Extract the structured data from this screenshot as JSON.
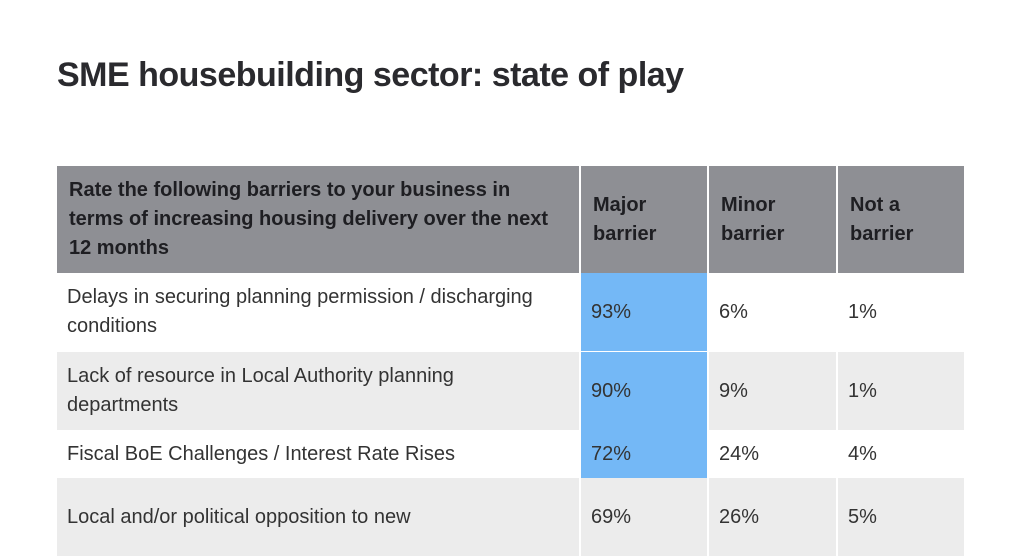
{
  "header": {
    "title": "SME housebuilding sector: state of play"
  },
  "table": {
    "columns": [
      "Rate the following barriers to your business in terms of increasing housing delivery over the next 12 months",
      "Major barrier",
      "Minor barrier",
      "Not a barrier"
    ],
    "rows": [
      [
        "Delays in securing planning permission / discharging conditions",
        "93%",
        "6%",
        "1%"
      ],
      [
        "Lack of resource in Local Authority planning departments",
        "90%",
        "9%",
        "1%"
      ],
      [
        "Fiscal BoE Challenges / Interest Rate Rises",
        "72%",
        "24%",
        "4%"
      ],
      [
        "Local and/or political opposition to new",
        "69%",
        "26%",
        "5%"
      ]
    ]
  }
}
